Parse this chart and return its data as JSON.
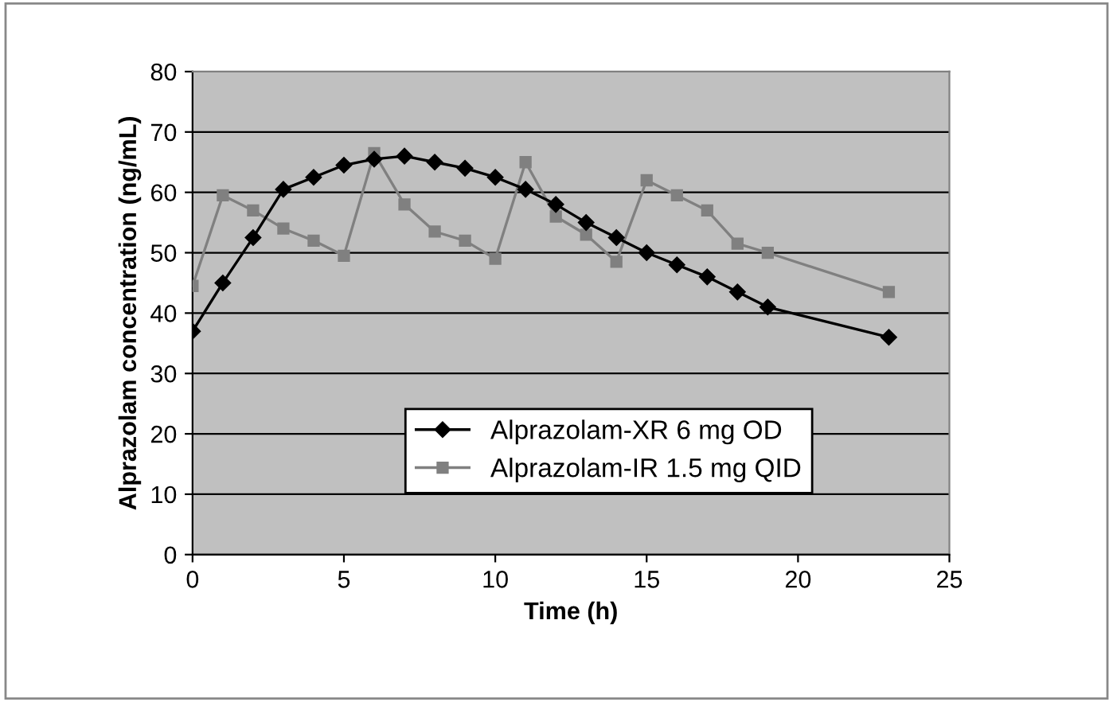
{
  "chart_data": {
    "type": "line",
    "xlabel": "Time (h)",
    "ylabel": "Alprazolam concentration (ng/mL)",
    "xlim": [
      0,
      25
    ],
    "xticks": [
      0,
      5,
      10,
      15,
      20,
      25
    ],
    "ylim": [
      0,
      80
    ],
    "yticks": [
      0,
      10,
      20,
      30,
      40,
      50,
      60,
      70,
      80
    ],
    "grid": "y",
    "legend": "bottom",
    "series": [
      {
        "name": "Alprazolam-XR 6 mg OD",
        "color": "#000000",
        "marker": "diamond",
        "x": [
          0,
          1,
          2,
          3,
          4,
          5,
          6,
          7,
          8,
          9,
          10,
          11,
          12,
          13,
          14,
          15,
          16,
          17,
          18,
          19,
          23
        ],
        "values": [
          37,
          45,
          52.5,
          60.5,
          62.5,
          64.5,
          65.5,
          66,
          65,
          64,
          62.5,
          60.5,
          58,
          55,
          52.5,
          50,
          48,
          46,
          43.5,
          41,
          36
        ]
      },
      {
        "name": "Alprazolam-IR 1.5 mg QID",
        "color": "#808080",
        "marker": "square",
        "x": [
          0,
          1,
          2,
          3,
          4,
          5,
          6,
          7,
          8,
          9,
          10,
          11,
          12,
          13,
          14,
          15,
          16,
          17,
          18,
          19,
          23
        ],
        "values": [
          44.5,
          59.5,
          57,
          54,
          52,
          49.5,
          66.5,
          58,
          53.5,
          52,
          49,
          65,
          56,
          53,
          48.5,
          62,
          59.5,
          57,
          51.5,
          50,
          43.5
        ]
      }
    ]
  }
}
